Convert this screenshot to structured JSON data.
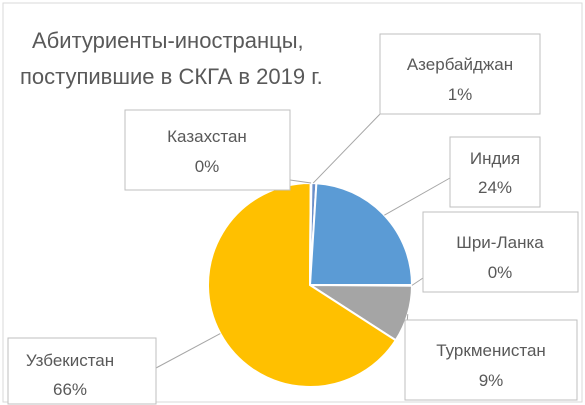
{
  "chart_data": {
    "type": "pie",
    "title_lines": [
      "Абитуриенты-иностранцы,",
      "поступившие в СКГА в 2019 г."
    ],
    "slices": [
      {
        "name": "Азербайджан",
        "value": 1,
        "label": "1%",
        "color": "#6b8fc9"
      },
      {
        "name": "Индия",
        "value": 24,
        "label": "24%",
        "color": "#5b9bd5"
      },
      {
        "name": "Шри-Ланка",
        "value": 0,
        "label": "0%",
        "color": "#264478"
      },
      {
        "name": "Туркменистан",
        "value": 9,
        "label": "9%",
        "color": "#a5a5a5"
      },
      {
        "name": "Узбекистан",
        "value": 66,
        "label": "66%",
        "color": "#ffc000"
      },
      {
        "name": "Казахстан",
        "value": 0,
        "label": "0%",
        "color": "#ed7d31"
      }
    ],
    "legend": "none",
    "data_labels": "callout boxes with category name and percent"
  }
}
